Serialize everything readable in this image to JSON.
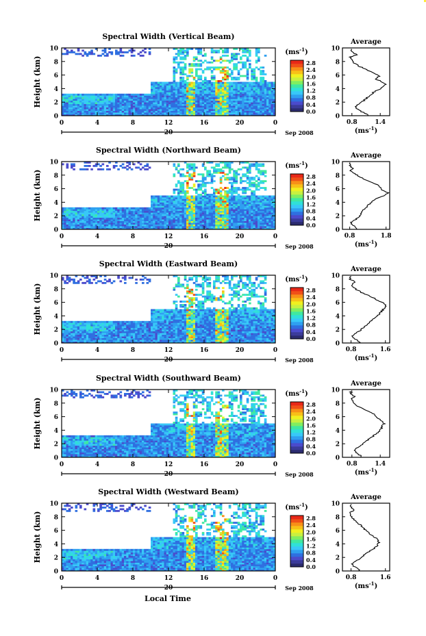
{
  "page": {
    "background": "#ffffff",
    "xlabel": "Local Time"
  },
  "colorbar": {
    "unit_base": "(ms",
    "unit_exp": "-1",
    "unit_close": ")",
    "ticks": [
      "2.8",
      "2.4",
      "2.0",
      "1.6",
      "1.2",
      "0.8",
      "0.4",
      "0.0"
    ],
    "colors": [
      "#2b2b6e",
      "#3b3b9a",
      "#4b4bcc",
      "#2f6fe0",
      "#2fa0f0",
      "#38c8f8",
      "#30e0d8",
      "#40e8a0",
      "#80ee60",
      "#c8f040",
      "#f0f020",
      "#f8c018",
      "#f89018",
      "#f05018",
      "#e82818"
    ]
  },
  "average_xlabel": {
    "base": "(ms",
    "exp": "-1",
    "close": ")"
  },
  "chart_data": [
    {
      "type": "heatmap",
      "title": "Spectral Width (Vertical Beam)",
      "ylabel": "Height (km)",
      "xlim": [
        0,
        24
      ],
      "ylim": [
        0,
        10
      ],
      "xticks": [
        "0",
        "4",
        "8",
        "12",
        "16",
        "20",
        "0"
      ],
      "yticks": [
        "0",
        "2",
        "4",
        "6",
        "8",
        "10"
      ],
      "date_day": "20",
      "date_label": "Sep 2008",
      "colorbar_range": [
        0.0,
        2.8
      ],
      "average": {
        "title": "Average",
        "xlim": [
          0.6,
          1.6
        ],
        "xticks": [
          "0.8",
          "1.4"
        ],
        "yticks": [
          "0",
          "2",
          "4",
          "6",
          "8",
          "10"
        ],
        "height_km": [
          0.2,
          0.6,
          1.0,
          1.4,
          1.8,
          2.2,
          2.6,
          3.0,
          3.4,
          3.8,
          4.2,
          4.6,
          5.0,
          5.4,
          5.8,
          6.2,
          6.6,
          7.0,
          7.4,
          7.8,
          8.2,
          8.6,
          9.0,
          9.4
        ],
        "width_ms": [
          1.15,
          1.0,
          0.92,
          0.88,
          0.95,
          1.05,
          1.12,
          1.18,
          1.25,
          1.35,
          1.45,
          1.52,
          1.45,
          1.3,
          1.38,
          1.3,
          1.15,
          1.05,
          0.92,
          0.85,
          0.8,
          0.75,
          0.9,
          0.8
        ]
      }
    },
    {
      "type": "heatmap",
      "title": "Spectral Width (Northward Beam)",
      "ylabel": "Height (km)",
      "xlim": [
        0,
        24
      ],
      "ylim": [
        0,
        10
      ],
      "xticks": [
        "0",
        "4",
        "8",
        "12",
        "16",
        "20",
        "0"
      ],
      "yticks": [
        "0",
        "2",
        "4",
        "6",
        "8",
        "10"
      ],
      "date_day": "20",
      "date_label": "Sep 2008",
      "colorbar_range": [
        0.0,
        2.8
      ],
      "average": {
        "title": "Average",
        "xlim": [
          0.6,
          1.9
        ],
        "xticks": [
          "0.8",
          "1.8"
        ],
        "yticks": [
          "0",
          "2",
          "4",
          "6",
          "8",
          "10"
        ],
        "height_km": [
          0.2,
          0.6,
          1.0,
          1.4,
          1.8,
          2.2,
          2.6,
          3.0,
          3.4,
          3.8,
          4.2,
          4.6,
          5.0,
          5.4,
          5.8,
          6.2,
          6.6,
          7.0,
          7.4,
          7.8,
          8.2,
          8.6,
          9.0,
          9.4
        ],
        "width_ms": [
          1.0,
          0.9,
          0.82,
          0.95,
          1.05,
          1.1,
          1.15,
          1.2,
          1.28,
          1.35,
          1.45,
          1.55,
          1.75,
          1.85,
          1.7,
          1.65,
          1.55,
          1.35,
          1.2,
          1.05,
          0.95,
          0.82,
          0.9,
          0.8
        ]
      }
    },
    {
      "type": "heatmap",
      "title": "Spectral Width (Eastward Beam)",
      "ylabel": "Height (km)",
      "xlim": [
        0,
        24
      ],
      "ylim": [
        0,
        10
      ],
      "xticks": [
        "0",
        "4",
        "8",
        "12",
        "16",
        "20",
        "0"
      ],
      "yticks": [
        "0",
        "2",
        "4",
        "6",
        "8",
        "10"
      ],
      "date_day": "20",
      "date_label": "Sep 2008",
      "colorbar_range": [
        0.0,
        2.8
      ],
      "average": {
        "title": "Average",
        "xlim": [
          0.6,
          1.7
        ],
        "xticks": [
          "0.8",
          "1.6"
        ],
        "yticks": [
          "0",
          "2",
          "4",
          "6",
          "8",
          "10"
        ],
        "height_km": [
          0.2,
          0.6,
          1.0,
          1.4,
          1.8,
          2.2,
          2.6,
          3.0,
          3.4,
          3.8,
          4.2,
          4.6,
          5.0,
          5.4,
          5.8,
          6.2,
          6.6,
          7.0,
          7.4,
          7.8,
          8.2,
          8.6,
          9.0,
          9.4
        ],
        "width_ms": [
          1.0,
          0.88,
          0.82,
          0.9,
          1.0,
          1.08,
          1.15,
          1.22,
          1.3,
          1.38,
          1.45,
          1.5,
          1.55,
          1.62,
          1.58,
          1.45,
          1.35,
          1.2,
          1.05,
          0.95,
          0.85,
          0.8,
          0.9,
          0.78
        ]
      }
    },
    {
      "type": "heatmap",
      "title": "Spectral Width (Southward Beam)",
      "ylabel": "Height (km)",
      "xlim": [
        0,
        24
      ],
      "ylim": [
        0,
        10
      ],
      "xticks": [
        "0",
        "4",
        "8",
        "12",
        "16",
        "20",
        "0"
      ],
      "yticks": [
        "0",
        "2",
        "4",
        "6",
        "8",
        "10"
      ],
      "date_day": "20",
      "date_label": "Sep 2008",
      "colorbar_range": [
        0.0,
        2.8
      ],
      "average": {
        "title": "Average",
        "xlim": [
          0.6,
          1.6
        ],
        "xticks": [
          "0.8",
          "1.4"
        ],
        "yticks": [
          "0",
          "2",
          "4",
          "6",
          "8",
          "10"
        ],
        "height_km": [
          0.2,
          0.6,
          1.0,
          1.4,
          1.8,
          2.2,
          2.6,
          3.0,
          3.4,
          3.8,
          4.2,
          4.6,
          5.0,
          5.4,
          5.8,
          6.2,
          6.6,
          7.0,
          7.4,
          7.8,
          8.2,
          8.6,
          9.0,
          9.4
        ],
        "width_ms": [
          1.0,
          0.9,
          0.85,
          0.92,
          1.0,
          1.08,
          1.15,
          1.22,
          1.3,
          1.38,
          1.42,
          1.45,
          1.48,
          1.42,
          1.35,
          1.3,
          1.2,
          1.08,
          0.95,
          0.88,
          0.82,
          0.78,
          0.85,
          0.78
        ]
      }
    },
    {
      "type": "heatmap",
      "title": "Spectral Width (Westward Beam)",
      "ylabel": "Height (km)",
      "xlim": [
        0,
        24
      ],
      "ylim": [
        0,
        10
      ],
      "xticks": [
        "0",
        "4",
        "8",
        "12",
        "16",
        "20",
        "0"
      ],
      "yticks": [
        "0",
        "2",
        "4",
        "6",
        "8",
        "10"
      ],
      "date_day": "20",
      "date_label": "Sep 2008",
      "colorbar_range": [
        0.0,
        2.8
      ],
      "average": {
        "title": "Average",
        "xlim": [
          0.6,
          1.7
        ],
        "xticks": [
          "0.8",
          "1.6"
        ],
        "yticks": [
          "0",
          "2",
          "4",
          "6",
          "8",
          "10"
        ],
        "height_km": [
          0.2,
          0.6,
          1.0,
          1.4,
          1.8,
          2.2,
          2.6,
          3.0,
          3.4,
          3.8,
          4.2,
          4.6,
          5.0,
          5.4,
          5.8,
          6.2,
          6.6,
          7.0,
          7.4,
          7.8,
          8.2,
          8.6,
          9.0,
          9.4
        ],
        "width_ms": [
          1.0,
          0.88,
          0.82,
          0.9,
          1.0,
          1.08,
          1.15,
          1.25,
          1.35,
          1.42,
          1.45,
          1.42,
          1.35,
          1.25,
          1.18,
          1.1,
          1.05,
          0.98,
          0.9,
          0.85,
          0.8,
          0.78,
          0.88,
          0.8
        ]
      }
    }
  ]
}
